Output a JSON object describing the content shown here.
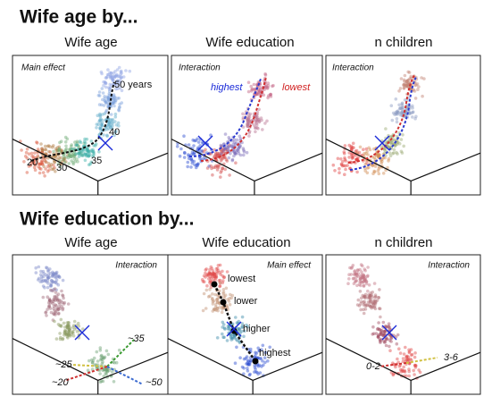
{
  "sections": [
    {
      "title": "Wife age by...",
      "panels": [
        {
          "title": "Wife age",
          "note": "Main effect",
          "labels": [
            "50 years",
            "40",
            "35",
            "30",
            "20"
          ]
        },
        {
          "title": "Wife education",
          "note": "Interaction",
          "labels": [
            "highest",
            "lowest"
          ]
        },
        {
          "title": "n children",
          "note": "Interaction",
          "labels": []
        }
      ]
    },
    {
      "title": "Wife education by...",
      "panels": [
        {
          "title": "Wife age",
          "note": "Interaction",
          "labels": [
            "~35",
            "~25",
            "~20",
            "~50"
          ]
        },
        {
          "title": "Wife education",
          "note": "Main effect",
          "labels": [
            "lowest",
            "lower",
            "higher",
            "highest"
          ]
        },
        {
          "title": "n children",
          "note": "Interaction",
          "labels": [
            "0-2",
            "3-6"
          ]
        }
      ]
    }
  ]
}
